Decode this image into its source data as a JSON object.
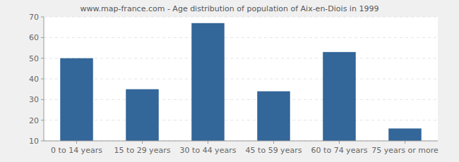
{
  "chart_data": {
    "type": "bar",
    "title": "www.map-france.com - Age distribution of population of Aix-en-Diois in 1999",
    "categories": [
      "0 to 14 years",
      "15 to 29 years",
      "30 to 44 years",
      "45 to 59 years",
      "60 to 74 years",
      "75 years or more"
    ],
    "values": [
      50,
      35,
      67,
      34,
      53,
      16
    ],
    "color": "#336699",
    "ylim": [
      10,
      70
    ],
    "yticks": [
      10,
      20,
      30,
      40,
      50,
      60,
      70
    ],
    "grid": true
  }
}
